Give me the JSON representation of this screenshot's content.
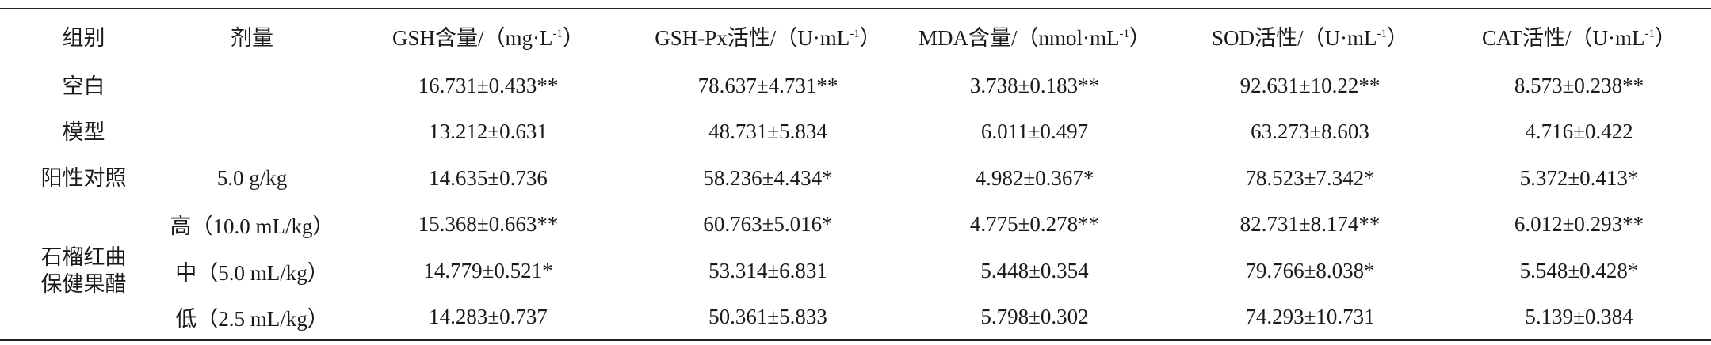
{
  "table": {
    "header": [
      {
        "text": "组别"
      },
      {
        "text": "剂量"
      },
      {
        "text": "GSH含量/（mg·L",
        "sup": "-1",
        "end": "）"
      },
      {
        "text": "GSH-Px活性/（U·mL",
        "sup": "-1",
        "end": "）"
      },
      {
        "text": "MDA含量/（nmol·mL",
        "sup": "-1",
        "end": "）"
      },
      {
        "text": "SOD活性/（U·mL",
        "sup": "-1",
        "end": "）"
      },
      {
        "text": "CAT活性/（U·mL",
        "sup": "-1",
        "end": "）"
      }
    ],
    "rows": [
      {
        "group": [
          "空白"
        ],
        "values": [
          "16.731±0.433**",
          "78.637±4.731**",
          "3.738±0.183**",
          "92.631±10.22**",
          "8.573±0.238**"
        ]
      },
      {
        "group": [
          "模型"
        ],
        "values": [
          "13.212±0.631",
          "48.731±5.834",
          "6.011±0.497",
          "63.273±8.603",
          "4.716±0.422"
        ]
      },
      {
        "group": [
          "阳性对照"
        ],
        "dose": "5.0 g/kg",
        "values": [
          "14.635±0.736",
          "58.236±4.434*",
          "4.982±0.367*",
          "78.523±7.342*",
          "5.372±0.413*"
        ]
      },
      {
        "group": [
          "石榴红曲",
          "保健果醋"
        ],
        "group_span": 3,
        "dose": "高（10.0 mL/kg）",
        "values": [
          "15.368±0.663**",
          "60.763±5.016*",
          "4.775±0.278**",
          "82.731±8.174**",
          "6.012±0.293**"
        ]
      },
      {
        "dose": "中（5.0 mL/kg）",
        "values": [
          "14.779±0.521*",
          "53.314±6.831",
          "5.448±0.354",
          "79.766±8.038*",
          "5.548±0.428*"
        ]
      },
      {
        "dose": "低（2.5 mL/kg）",
        "values": [
          "14.283±0.737",
          "50.361±5.833",
          "5.798±0.302",
          "74.293±10.731",
          "5.139±0.384"
        ]
      }
    ]
  }
}
